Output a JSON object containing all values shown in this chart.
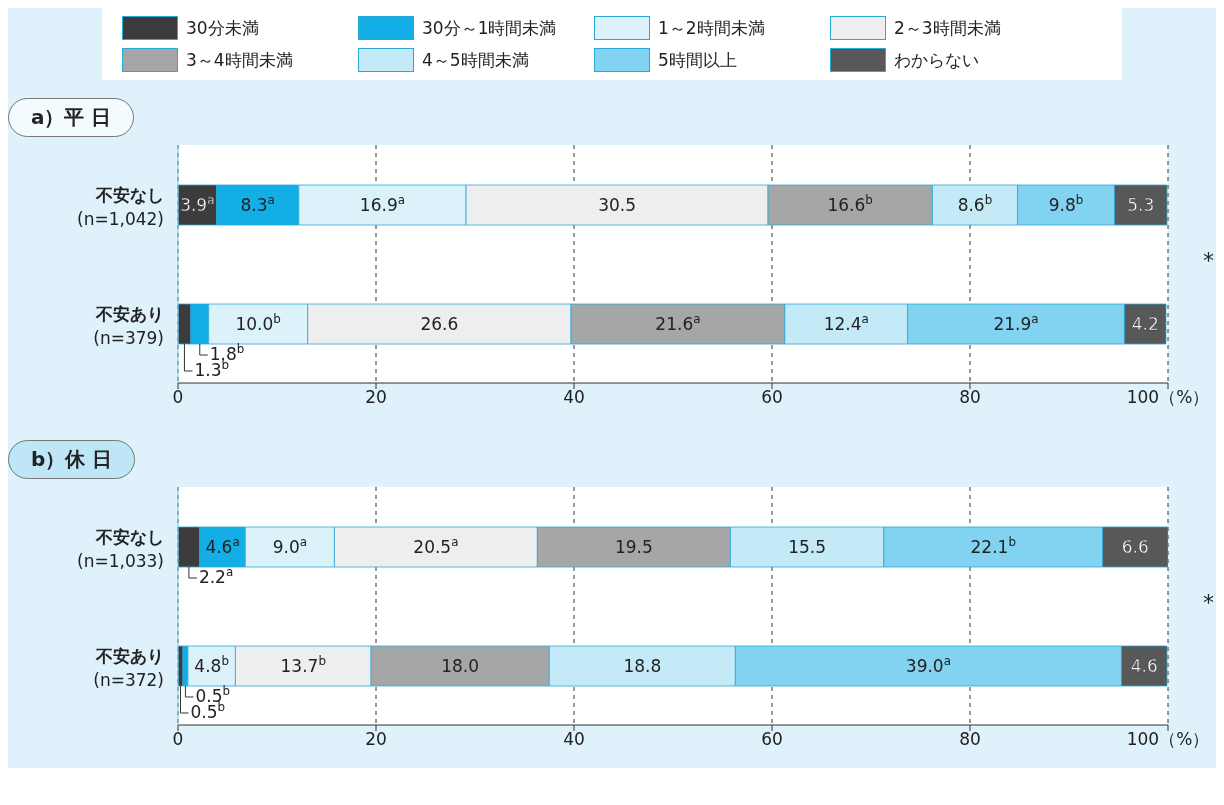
{
  "chart_data": [
    {
      "type": "bar",
      "title": "a）平 日",
      "orientation": "horizontal",
      "stacked": true,
      "categories": [
        "不安なし\n(n=1,042)",
        "不安あり\n(n=379)"
      ],
      "xlim": [
        0,
        100
      ],
      "xticks": [
        0,
        20,
        40,
        60,
        80,
        {
          "value": 100,
          "label": "100（%）"
        }
      ],
      "grid": "x",
      "legend": "top",
      "annotations": [
        "*"
      ],
      "series": [
        {
          "name": "30分未満",
          "color": "#3c3c3c",
          "values": [
            3.9,
            1.3
          ],
          "value_labels": [
            "3.9$^{a}$",
            "1.3$^{b}$"
          ]
        },
        {
          "name": "30分～1時間未満",
          "color": "#14aee6",
          "values": [
            8.3,
            1.8
          ],
          "value_labels": [
            "8.3$^{a}$",
            "1.8$^{b}$"
          ]
        },
        {
          "name": "1～2時間未満",
          "color": "#dcf2fb",
          "values": [
            16.9,
            10.0
          ],
          "value_labels": [
            "16.9$^{a}$",
            "10.0$^{b}$"
          ]
        },
        {
          "name": "2～3時間未満",
          "color": "#eeeeee",
          "values": [
            30.5,
            26.6
          ],
          "value_labels": [
            "30.5",
            "26.6"
          ]
        },
        {
          "name": "3～4時間未満",
          "color": "#a6a6a6",
          "values": [
            16.6,
            21.6
          ],
          "value_labels": [
            "16.6$^{b}$",
            "21.6$^{a}$"
          ]
        },
        {
          "name": "4～5時間未満",
          "color": "#c4eaf8",
          "values": [
            8.6,
            12.4
          ],
          "value_labels": [
            "8.6$^{b}$",
            "12.4$^{a}$"
          ]
        },
        {
          "name": "5時間以上",
          "color": "#82d2f1",
          "values": [
            9.8,
            21.9
          ],
          "value_labels": [
            "9.8$^{b}$",
            "21.9$^{a}$"
          ]
        },
        {
          "name": "わからない",
          "color": "#585858",
          "values": [
            5.3,
            4.2
          ],
          "value_labels": [
            "5.3",
            "4.2"
          ]
        }
      ]
    },
    {
      "type": "bar",
      "title": "b）休 日",
      "orientation": "horizontal",
      "stacked": true,
      "categories": [
        "不安なし\n(n=1,033)",
        "不安あり\n(n=372)"
      ],
      "xlim": [
        0,
        100
      ],
      "xticks": [
        0,
        20,
        40,
        60,
        80,
        {
          "value": 100,
          "label": "100（%）"
        }
      ],
      "grid": "x",
      "annotations": [
        "*"
      ],
      "series": [
        {
          "color": "#3c3c3c",
          "values": [
            2.2,
            0.5
          ],
          "value_labels": [
            "2.2$^{a}$",
            "0.5$^{b}$"
          ]
        },
        {
          "color": "#14aee6",
          "values": [
            4.6,
            0.5
          ],
          "value_labels": [
            "4.6$^{a}$",
            "0.5$^{b}$"
          ]
        },
        {
          "color": "#dcf2fb",
          "values": [
            9.0,
            4.8
          ],
          "value_labels": [
            "9.0$^{a}$",
            "4.8$^{b}$"
          ]
        },
        {
          "color": "#eeeeee",
          "values": [
            20.5,
            13.7
          ],
          "value_labels": [
            "20.5$^{a}$",
            "13.7$^{b}$"
          ]
        },
        {
          "color": "#a6a6a6",
          "values": [
            19.5,
            18.0
          ],
          "value_labels": [
            "19.5",
            "18.0"
          ]
        },
        {
          "color": "#c4eaf8",
          "values": [
            15.5,
            18.8
          ],
          "value_labels": [
            "15.5",
            "18.8"
          ]
        },
        {
          "color": "#82d2f1",
          "values": [
            22.1,
            39.0
          ],
          "value_labels": [
            "22.1$^{b}$",
            "39.0$^{a}$"
          ]
        },
        {
          "color": "#585858",
          "values": [
            6.6,
            4.6
          ],
          "value_labels": [
            "6.6",
            "4.6"
          ]
        }
      ]
    }
  ]
}
